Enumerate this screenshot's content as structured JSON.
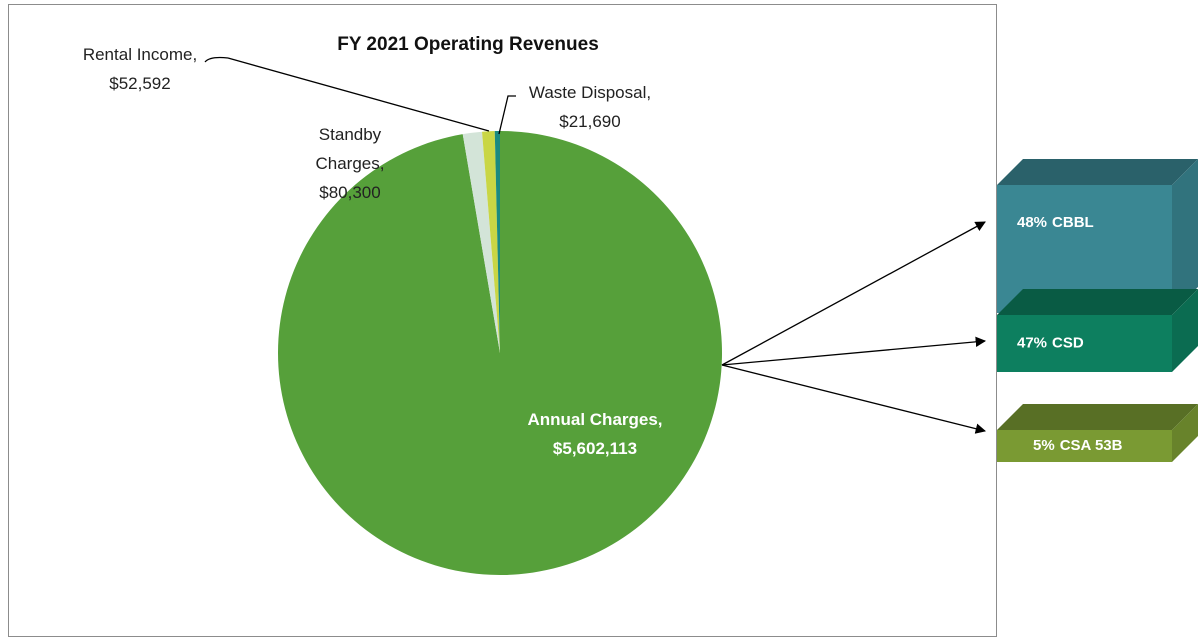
{
  "chart_data": {
    "type": "pie",
    "title": "FY 2021 Operating Revenues",
    "categories": [
      "Annual Charges,",
      "Standby Charges,",
      "Rental Income,",
      "Waste Disposal,"
    ],
    "values": [
      5602113,
      80300,
      52592,
      21690
    ],
    "value_labels": [
      "$5,602,113",
      "$80,300",
      "$52,592",
      "$21,690"
    ],
    "colors": [
      "#56a03a",
      "#d3e4d8",
      "#c9d645",
      "#1a8a80"
    ],
    "breakdown": {
      "categories": [
        "CBBL",
        "CSD",
        "CSA 53B"
      ],
      "values": [
        48,
        47,
        5
      ],
      "value_labels": [
        "48%",
        "47%",
        "5%"
      ],
      "colors": [
        "#3a8793",
        "#0d7f5f",
        "#7a9a33"
      ]
    }
  }
}
